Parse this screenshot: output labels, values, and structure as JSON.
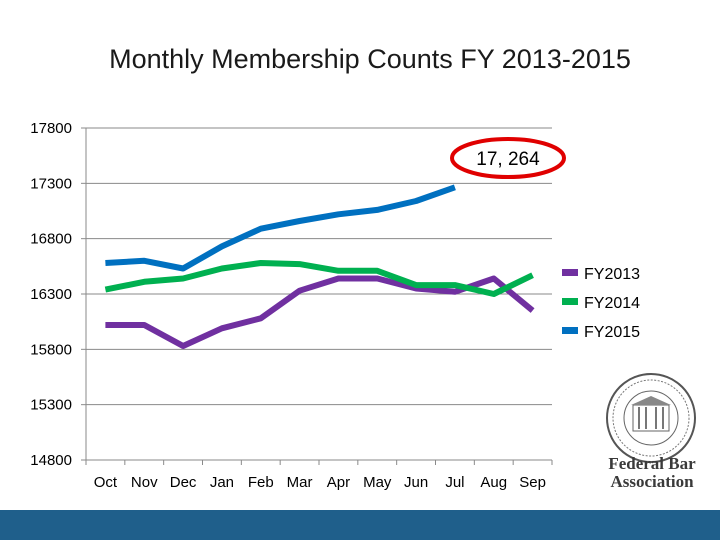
{
  "chart_data": {
    "type": "line",
    "title": "Monthly Membership Counts FY 2013-2015",
    "categories": [
      "Oct",
      "Nov",
      "Dec",
      "Jan",
      "Feb",
      "Mar",
      "Apr",
      "May",
      "Jun",
      "Jul",
      "Aug",
      "Sep"
    ],
    "ylim": [
      14800,
      17800
    ],
    "yticks": [
      14800,
      15300,
      15800,
      16300,
      16800,
      17300,
      17800
    ],
    "grid": true,
    "legend_position": "right",
    "series": [
      {
        "name": "FY2013",
        "color": "#7030a0",
        "values": [
          16020,
          16020,
          15830,
          15990,
          16080,
          16330,
          16440,
          16440,
          16350,
          16320,
          16440,
          16150
        ]
      },
      {
        "name": "FY2014",
        "color": "#00b050",
        "values": [
          16340,
          16410,
          16440,
          16530,
          16580,
          16570,
          16510,
          16510,
          16380,
          16380,
          16300,
          16470
        ]
      },
      {
        "name": "FY2015",
        "color": "#0070c0",
        "values": [
          16580,
          16600,
          16530,
          16730,
          16890,
          16960,
          17020,
          17060,
          17140,
          17264,
          null,
          null
        ]
      }
    ],
    "annotation": {
      "text": "17, 264",
      "color": "#e00000"
    }
  },
  "logo": {
    "line1": "Federal Bar",
    "line2": "Association"
  },
  "colors": {
    "footer": "#1f5f8b",
    "grid": "#8a8a8a"
  }
}
